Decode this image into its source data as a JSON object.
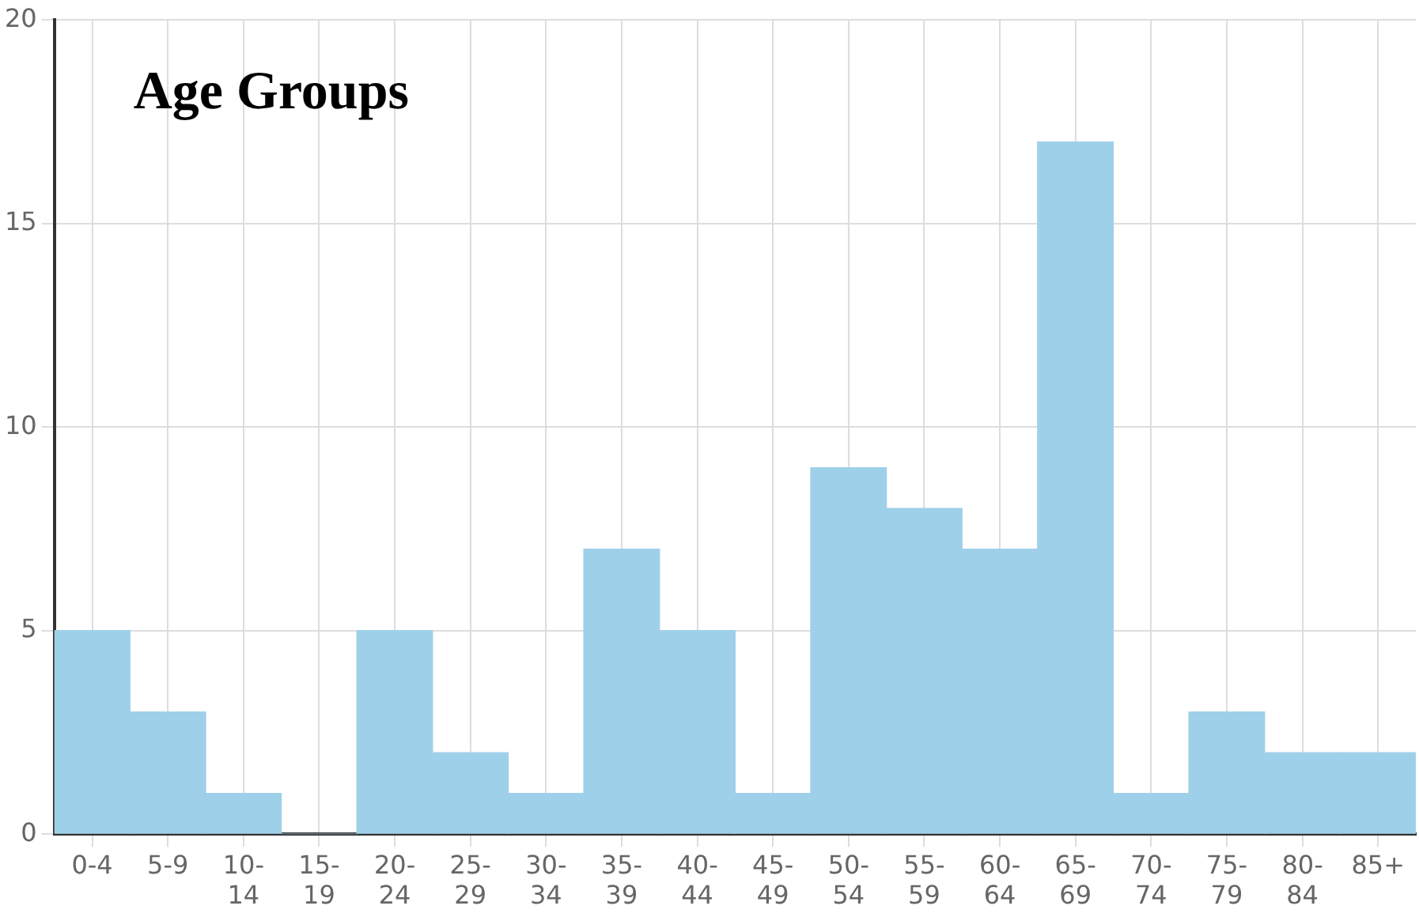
{
  "chart_data": {
    "type": "bar",
    "title": "Age Groups",
    "categories": [
      "0-4",
      "5-9",
      "10-14",
      "15-19",
      "20-24",
      "25-29",
      "30-34",
      "35-39",
      "40-44",
      "45-49",
      "50-54",
      "55-59",
      "60-64",
      "65-69",
      "70-74",
      "75-79",
      "80-84",
      "85+"
    ],
    "values": [
      5,
      3,
      1,
      0,
      5,
      2,
      1,
      7,
      5,
      1,
      9,
      8,
      7,
      17,
      1,
      3,
      2,
      2
    ],
    "color": "#9fd0ea",
    "ylim": [
      0,
      20
    ],
    "yticks": [
      0,
      5,
      10,
      15,
      20
    ],
    "grid": true,
    "legend": false
  }
}
